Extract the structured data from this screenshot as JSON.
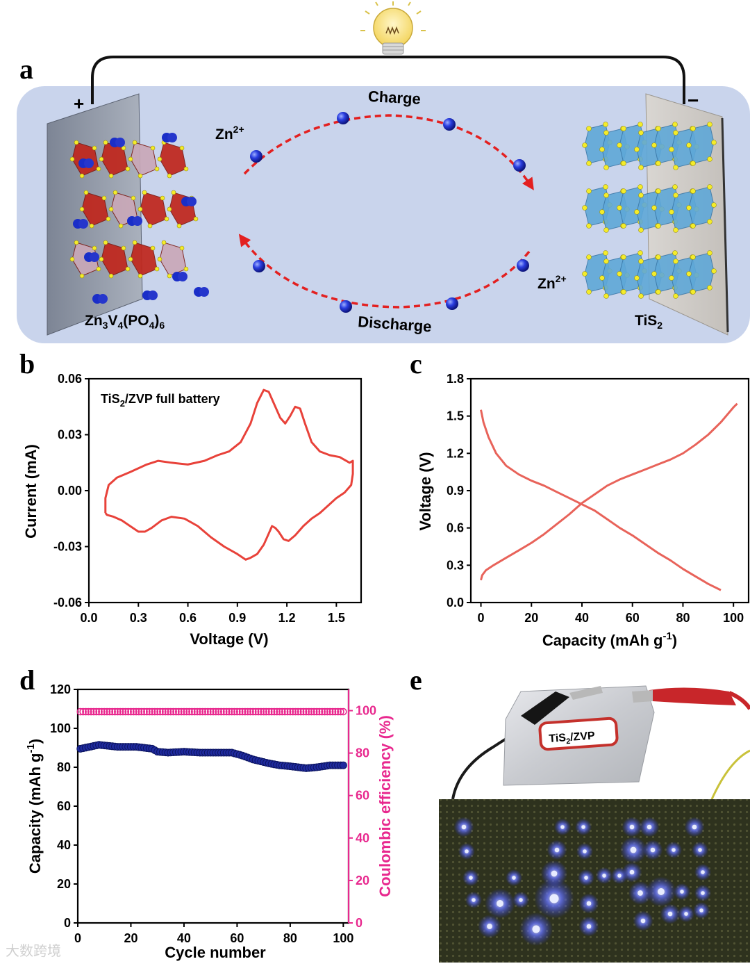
{
  "figure": {
    "labels": {
      "a": "a",
      "b": "b",
      "c": "c",
      "d": "d",
      "e": "e"
    },
    "watermark": "大数跨境"
  },
  "schematic": {
    "plus": "+",
    "minus": "−",
    "charge": "Charge",
    "discharge": "Discharge",
    "ion_label": "Zn",
    "ion_charge": "2+",
    "cathode_formula": "Zn3V4(PO4)6",
    "anode_formula": "TiS2",
    "colors": {
      "panel": "#c9d4ec",
      "arrow": "#e32020",
      "ion": "#1a2ec8",
      "cathode": "#c0261c",
      "anode": "#5fa8d8",
      "sulfur": "#f4ec2a"
    }
  },
  "photo": {
    "pouch_label": "TiS2/ZVP",
    "led_color": "#3a46ff"
  },
  "chart_data": [
    {
      "panel": "b",
      "type": "line",
      "legend": "TiS2/ZVP full battery",
      "xlabel": "Voltage (V)",
      "ylabel": "Current (mA)",
      "xlim": [
        0.0,
        1.65
      ],
      "ylim": [
        -0.06,
        0.06
      ],
      "xticks": [
        "0.0",
        "0.3",
        "0.6",
        "0.9",
        "1.2",
        "1.5"
      ],
      "yticks": [
        "-0.06",
        "-0.03",
        "0.00",
        "0.03",
        "0.06"
      ],
      "color": "#e8423a",
      "x": [
        0.1,
        0.1,
        0.12,
        0.17,
        0.25,
        0.35,
        0.42,
        0.5,
        0.6,
        0.7,
        0.78,
        0.85,
        0.92,
        0.98,
        1.02,
        1.06,
        1.09,
        1.12,
        1.16,
        1.19,
        1.22,
        1.25,
        1.28,
        1.31,
        1.35,
        1.4,
        1.46,
        1.52,
        1.58,
        1.6,
        1.6,
        1.59,
        1.55,
        1.5,
        1.45,
        1.4,
        1.35,
        1.3,
        1.25,
        1.21,
        1.18,
        1.15,
        1.13,
        1.11,
        1.09,
        1.06,
        1.02,
        0.98,
        0.95,
        0.9,
        0.82,
        0.74,
        0.66,
        0.58,
        0.5,
        0.44,
        0.38,
        0.34,
        0.3,
        0.25,
        0.2,
        0.15,
        0.11,
        0.1
      ],
      "y": [
        -0.012,
        -0.004,
        0.003,
        0.007,
        0.01,
        0.014,
        0.016,
        0.015,
        0.014,
        0.016,
        0.019,
        0.021,
        0.026,
        0.036,
        0.047,
        0.054,
        0.053,
        0.047,
        0.039,
        0.036,
        0.04,
        0.045,
        0.044,
        0.036,
        0.026,
        0.021,
        0.019,
        0.018,
        0.015,
        0.016,
        0.009,
        0.003,
        -0.001,
        -0.004,
        -0.008,
        -0.012,
        -0.015,
        -0.019,
        -0.024,
        -0.027,
        -0.026,
        -0.022,
        -0.02,
        -0.019,
        -0.023,
        -0.029,
        -0.034,
        -0.036,
        -0.037,
        -0.034,
        -0.03,
        -0.025,
        -0.019,
        -0.015,
        -0.014,
        -0.016,
        -0.02,
        -0.022,
        -0.022,
        -0.019,
        -0.016,
        -0.014,
        -0.013,
        -0.012
      ]
    },
    {
      "panel": "c",
      "type": "line",
      "xlabel": "Capacity (mAh g",
      "xlabel_sup": "-1",
      "xlabel_end": ")",
      "ylabel": "Voltage (V)",
      "xlim": [
        -4,
        106
      ],
      "ylim": [
        0.0,
        1.8
      ],
      "xticks": [
        "0",
        "20",
        "40",
        "60",
        "80",
        "100"
      ],
      "yticks": [
        "0.0",
        "0.3",
        "0.6",
        "0.9",
        "1.2",
        "1.5",
        "1.8"
      ],
      "color": "#e8635a",
      "series": [
        {
          "name": "charge",
          "x": [
            0,
            0.5,
            2,
            5,
            10,
            15,
            20,
            25,
            30,
            35,
            40,
            45,
            50,
            55,
            60,
            65,
            70,
            75,
            80,
            85,
            90,
            95,
            100,
            101.5
          ],
          "y": [
            0.18,
            0.22,
            0.26,
            0.3,
            0.36,
            0.42,
            0.48,
            0.55,
            0.63,
            0.71,
            0.8,
            0.87,
            0.94,
            0.99,
            1.03,
            1.07,
            1.11,
            1.15,
            1.2,
            1.27,
            1.35,
            1.45,
            1.57,
            1.6
          ]
        },
        {
          "name": "discharge",
          "x": [
            0,
            1,
            3,
            6,
            10,
            15,
            20,
            25,
            30,
            35,
            40,
            45,
            50,
            55,
            60,
            65,
            70,
            75,
            80,
            85,
            90,
            95
          ],
          "y": [
            1.55,
            1.45,
            1.33,
            1.2,
            1.1,
            1.03,
            0.98,
            0.94,
            0.89,
            0.84,
            0.79,
            0.74,
            0.67,
            0.6,
            0.54,
            0.47,
            0.4,
            0.34,
            0.27,
            0.21,
            0.15,
            0.1
          ]
        }
      ]
    },
    {
      "panel": "d",
      "type": "scatter",
      "xlabel": "Cycle number",
      "ylabel": "Capacity (mAh g",
      "ylabel_sup": "-1",
      "ylabel_end": ")",
      "y2label": "Coulombic efficiency (%)",
      "xlim": [
        0,
        102
      ],
      "ylim": [
        0,
        120
      ],
      "y2lim": [
        0,
        110
      ],
      "xticks": [
        "0",
        "20",
        "40",
        "60",
        "80",
        "100"
      ],
      "yticks": [
        "0",
        "20",
        "40",
        "60",
        "80",
        "100",
        "120"
      ],
      "y2ticks": [
        "0",
        "20",
        "40",
        "60",
        "80",
        "100"
      ],
      "capacity_color": "#1f2a9e",
      "ce_color": "#e8288e",
      "capacity_points": [
        [
          1,
          89.5
        ],
        [
          8,
          91.5
        ],
        [
          15,
          90.5
        ],
        [
          22,
          90.5
        ],
        [
          28,
          89.5
        ],
        [
          30,
          88
        ],
        [
          34,
          87.5
        ],
        [
          40,
          88
        ],
        [
          46,
          87.5
        ],
        [
          52,
          87.5
        ],
        [
          58,
          87.5
        ],
        [
          62,
          86
        ],
        [
          66,
          84
        ],
        [
          72,
          82
        ],
        [
          76,
          81
        ],
        [
          80,
          80.5
        ],
        [
          86,
          79.5
        ],
        [
          90,
          80
        ],
        [
          95,
          81
        ],
        [
          100,
          81
        ]
      ],
      "ce_value": 99.5
    }
  ]
}
